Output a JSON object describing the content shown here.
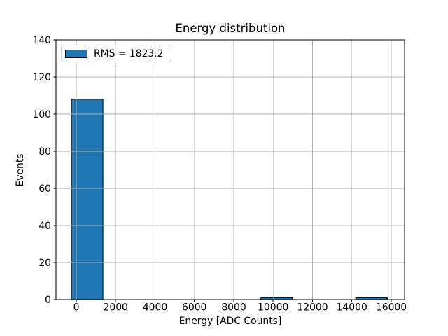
{
  "chart_data": {
    "type": "bar",
    "subtype": "histogram",
    "title": "Energy distribution",
    "xlabel": "Energy [ADC Counts]",
    "ylabel": "Events",
    "legend_label": "RMS = 1823.2",
    "legend_position": "upper left",
    "bin_edges": [
      -250,
      1355,
      2960,
      4565,
      6170,
      7775,
      9380,
      10985,
      12590,
      14195,
      15800
    ],
    "counts": [
      108,
      0,
      0,
      0,
      0,
      0,
      1,
      0,
      0,
      1
    ],
    "xticks": [
      0,
      2000,
      4000,
      6000,
      8000,
      10000,
      12000,
      14000,
      16000
    ],
    "yticks": [
      0,
      20,
      40,
      60,
      80,
      100,
      120,
      140
    ],
    "xlim": [
      -1031,
      16676
    ],
    "ylim": [
      0,
      140
    ],
    "grid": true,
    "grid_above_bars": true,
    "colors": {
      "bar_fill": "#1f77b4",
      "bar_edge": "#000000",
      "grid": "#b0b0b0",
      "axis": "#000000",
      "text": "#000000",
      "legend_border": "#cccccc"
    }
  }
}
